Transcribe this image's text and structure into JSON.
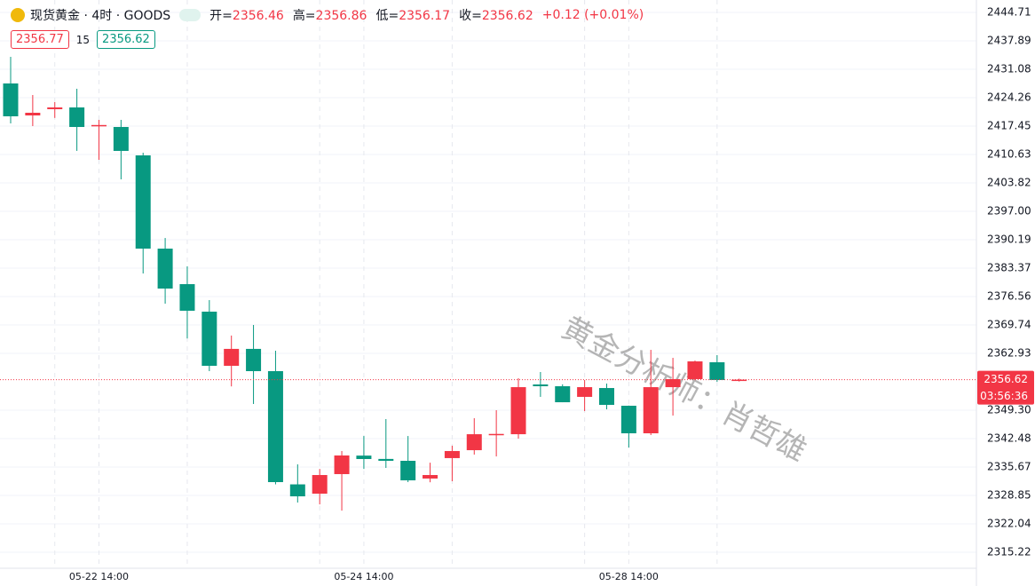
{
  "header": {
    "symbol": "现货黄金 · 4时 · GOODS",
    "ohlc_labels": [
      "开=",
      "高=",
      "低=",
      "收="
    ],
    "change": "+0.12 (+0.01%)",
    "bid": 2356.77,
    "spread": 15,
    "ask": 2356.62,
    "countdown": "03:56:36",
    "watermark": "黄金分析师：肖哲雄"
  },
  "chart_data": {
    "type": "candlestick",
    "up_color": "#f23645",
    "down_color": "#089981",
    "categories": [
      null,
      null,
      null,
      null,
      "05-22 14:00",
      null,
      null,
      null,
      null,
      null,
      null,
      null,
      null,
      null,
      null,
      null,
      "05-24 14:00",
      null,
      null,
      null,
      null,
      null,
      null,
      null,
      null,
      null,
      null,
      null,
      "05-28 14:00",
      null,
      null,
      null,
      null,
      null
    ],
    "open": [
      2427.67,
      2420.0,
      2421.5,
      2421.92,
      2417.5,
      2417.23,
      2410.42,
      2388.05,
      2379.53,
      2372.93,
      2359.94,
      2364.0,
      2358.66,
      2331.5,
      2329.27,
      2333.96,
      2338.4,
      2337.6,
      2337.15,
      2332.9,
      2337.8,
      2339.7,
      2343.3,
      2343.53,
      2355.47,
      2355.04,
      2352.49,
      2354.61,
      2350.36,
      2343.75,
      2354.82,
      2356.75,
      2360.79,
      2356.46
    ],
    "high": [
      2434.06,
      2424.9,
      2423.2,
      2426.4,
      2418.94,
      2418.94,
      2411.06,
      2390.6,
      2383.8,
      2375.7,
      2367.2,
      2369.74,
      2363.56,
      2336.3,
      2335.2,
      2339.5,
      2343.1,
      2347.16,
      2343.1,
      2336.7,
      2340.77,
      2347.37,
      2349.29,
      2356.96,
      2358.45,
      2355.5,
      2356.53,
      2355.68,
      2350.4,
      2363.77,
      2361.85,
      2361.2,
      2362.5,
      2356.86
    ],
    "low": [
      2418.09,
      2417.45,
      2419.4,
      2411.5,
      2409.35,
      2404.67,
      2382.1,
      2374.85,
      2366.5,
      2358.66,
      2355.0,
      2350.78,
      2331.5,
      2327.14,
      2326.7,
      2325.2,
      2335.2,
      2335.45,
      2332.04,
      2332.0,
      2332.25,
      2338.64,
      2338.2,
      2342.47,
      2352.49,
      2351.2,
      2349.08,
      2349.5,
      2340.34,
      2343.33,
      2348.0,
      2356.5,
      2356.1,
      2356.17
    ],
    "close": [
      2419.79,
      2420.64,
      2421.92,
      2417.23,
      2417.7,
      2411.49,
      2388.05,
      2378.47,
      2373.15,
      2359.94,
      2364.0,
      2358.66,
      2332.04,
      2328.63,
      2333.74,
      2338.43,
      2337.58,
      2337.15,
      2332.47,
      2333.74,
      2339.5,
      2343.53,
      2343.6,
      2354.82,
      2355.04,
      2351.2,
      2354.82,
      2350.57,
      2343.75,
      2354.82,
      2356.75,
      2361.0,
      2356.53,
      2356.62
    ],
    "ylim": [
      2311.38,
      2447.69
    ],
    "yticks": [
      2444.71,
      2437.89,
      2431.08,
      2424.26,
      2417.45,
      2410.63,
      2403.82,
      {
        "value": 2397,
        "label": "2397.00"
      },
      2390.19,
      2383.37,
      2376.56,
      2369.74,
      2362.93,
      {
        "value": 2349.3,
        "label": "2349.30"
      },
      2342.48,
      2335.67,
      2328.85,
      2322.04,
      2315.22
    ]
  }
}
